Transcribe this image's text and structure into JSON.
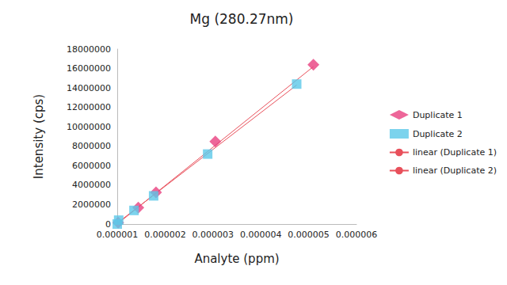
{
  "chart_data": {
    "type": "scatter",
    "title": "Mg (280.27nm)",
    "x_label": "Analyte (ppm)",
    "y_label": "Intensity (cps)",
    "xlim": [
      1e-06,
      6e-06
    ],
    "xticks": [
      1e-06,
      2e-06,
      3e-06,
      4e-06,
      5e-06,
      6e-06
    ],
    "ylim": [
      0,
      18000000
    ],
    "yticks": [
      0,
      2000000,
      4000000,
      6000000,
      8000000,
      10000000,
      12000000,
      14000000,
      16000000,
      18000000
    ],
    "grid": false,
    "legend": "right",
    "series": [
      {
        "name": "Duplicate 1",
        "type": "scatter",
        "marker": "diamond",
        "color": "#e8407f",
        "x": [
          1.02e-06,
          1.44e-06,
          1.81e-06,
          3.05e-06,
          5.1e-06
        ],
        "values": [
          150000,
          1700000,
          3250000,
          8500000,
          16400000
        ]
      },
      {
        "name": "Duplicate 2",
        "type": "scatter",
        "marker": "square",
        "color": "#5bc8e8",
        "x": [
          1e-06,
          1.03e-06,
          1.35e-06,
          1.76e-06,
          2.89e-06,
          4.75e-06
        ],
        "values": [
          0,
          400000,
          1400000,
          2900000,
          7200000,
          14400000
        ]
      },
      {
        "name": "linear (Duplicate 1)",
        "type": "line",
        "line_style": "solid",
        "color": "#e8505b",
        "x": [
          1e-06,
          5.1e-06
        ],
        "values": [
          0,
          16200000
        ]
      },
      {
        "name": "linear (Duplicate 2)",
        "type": "line",
        "line_style": "solid",
        "color": "#e8505b",
        "x": [
          1e-06,
          4.75e-06
        ],
        "values": [
          100000,
          14300000
        ]
      }
    ]
  }
}
